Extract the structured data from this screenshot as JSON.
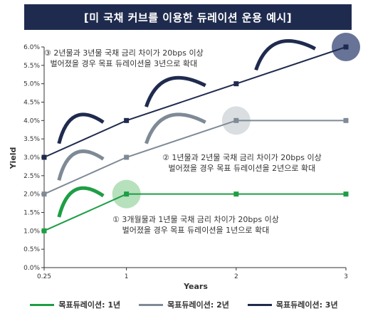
{
  "title": "[미 국채 커브를 이용한 듀레이션 운용 예시]",
  "annotations": [
    {
      "line1": "③ 2년물과 3년물 국채 금리 차이가 20bps 이상",
      "line2": "벌어졌을 경우 목표 듀레이션을 3년으로 확대"
    },
    {
      "line1": "② 1년물과 2년물 국채 금리 차이가 20bps 이상",
      "line2": "벌어졌을 경우 목표 듀레이션을 2년으로 확대"
    },
    {
      "line1": "① 3개월물과 1년물 국채 금리 차이가 20bps 이상",
      "line2": "벌어졌을 경우 목표 듀레이션을 1년으로 확대"
    }
  ],
  "chart_data": {
    "type": "line",
    "xlabel": "Years",
    "ylabel": "Yield",
    "x": [
      "0.25",
      "1",
      "2",
      "3"
    ],
    "ylim": [
      0,
      6
    ],
    "yticks": [
      "0.0%",
      "0.5%",
      "1.0%",
      "1.5%",
      "2.0%",
      "2.5%",
      "3.0%",
      "3.5%",
      "4.0%",
      "4.5%",
      "5.0%",
      "5.5%",
      "6.0%"
    ],
    "series": [
      {
        "name": "목표듀레이션: 1년",
        "color": "#1e9e45",
        "values": [
          1.0,
          2.0,
          2.0,
          2.0
        ]
      },
      {
        "name": "목표듀레이션: 2년",
        "color": "#7e8a96",
        "values": [
          2.0,
          3.0,
          4.0,
          4.0
        ]
      },
      {
        "name": "목표듀레이션: 3년",
        "color": "#1f2b4e",
        "values": [
          3.0,
          4.0,
          5.0,
          6.0
        ]
      }
    ],
    "highlights": [
      {
        "series": 0,
        "x": 1,
        "color": "#a9dcb0"
      },
      {
        "series": 1,
        "x": 2,
        "color": "#d4d8dc"
      },
      {
        "series": 2,
        "x": 3,
        "color": "#4c5a85"
      }
    ],
    "arcs": [
      {
        "series": 0,
        "from": 0.25,
        "to": 1,
        "color": "#1e9e45"
      },
      {
        "series": 1,
        "from": 0.25,
        "to": 1,
        "color": "#7e8a96"
      },
      {
        "series": 1,
        "from": 1,
        "to": 2,
        "color": "#7e8a96"
      },
      {
        "series": 2,
        "from": 0.25,
        "to": 1,
        "color": "#1f2b4e"
      },
      {
        "series": 2,
        "from": 1,
        "to": 2,
        "color": "#1f2b4e"
      },
      {
        "series": 2,
        "from": 2,
        "to": 3,
        "color": "#1f2b4e"
      }
    ]
  }
}
